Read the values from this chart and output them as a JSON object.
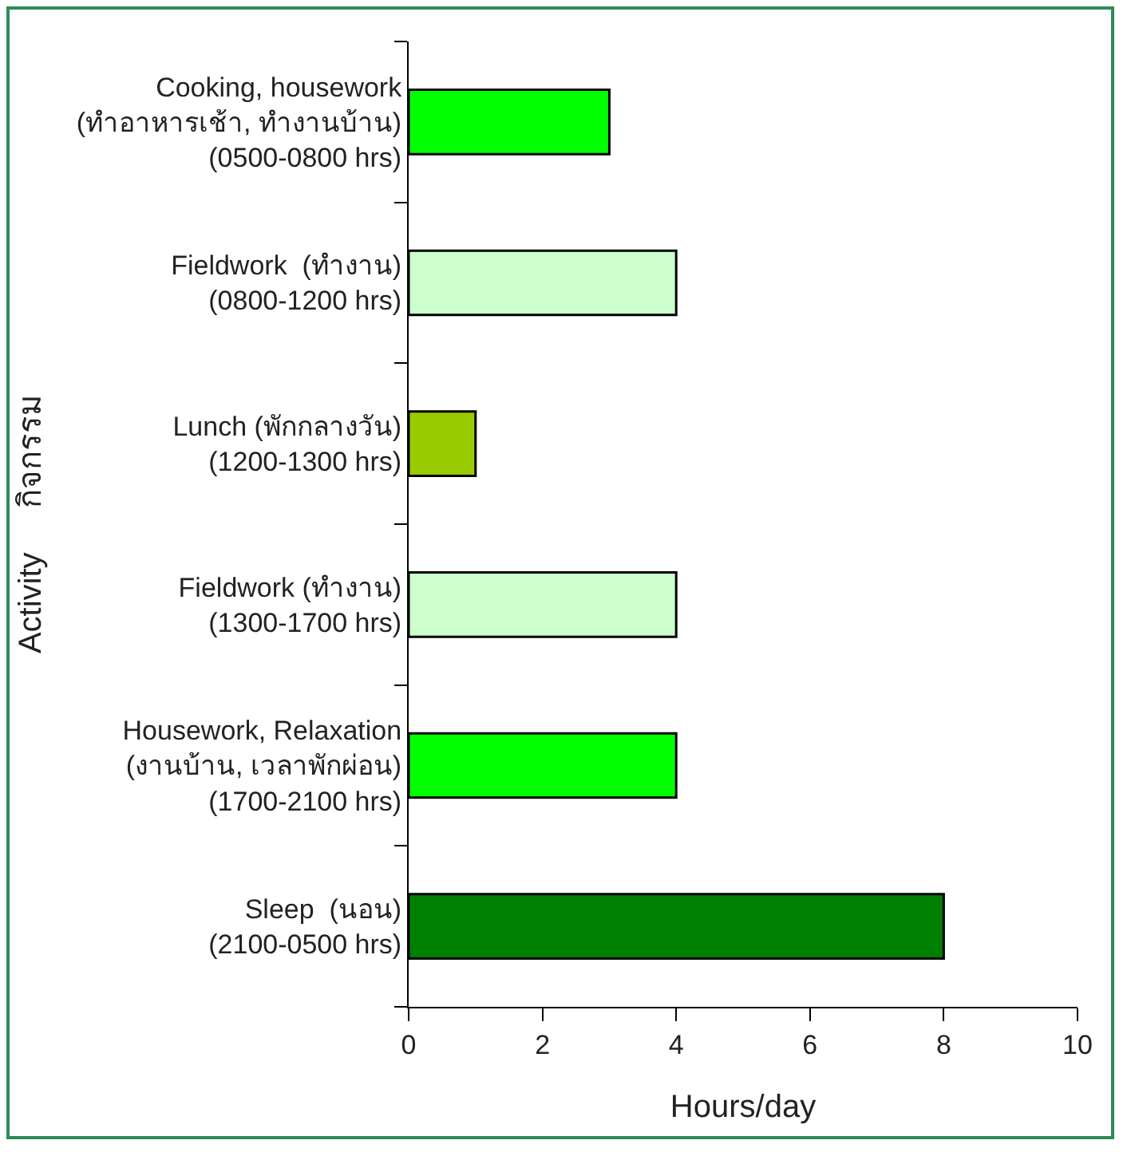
{
  "chart_data": {
    "type": "bar",
    "orientation": "horizontal",
    "xlabel": "Hours/day",
    "ylabel": "Activity     กิจกรรม",
    "categories": [
      "Cooking, housework\n(ทำอาหารเช้า, ทำงานบ้าน)\n(0500-0800 hrs)",
      "Fieldwork  (ทำงาน)\n(0800-1200 hrs)",
      "Lunch (พักกลางวัน)\n(1200-1300 hrs)",
      "Fieldwork (ทำงาน)\n(1300-1700 hrs)",
      "Housework, Relaxation\n(งานบ้าน, เวลาพักผ่อน)\n(1700-2100 hrs)",
      "Sleep  (นอน)\n(2100-0500 hrs)"
    ],
    "values": [
      3,
      4,
      1,
      4,
      4,
      8
    ],
    "colors": [
      "#00ff00",
      "#ccffcc",
      "#99cc00",
      "#ccffcc",
      "#00ff00",
      "#008000"
    ],
    "xlim": [
      0,
      10
    ],
    "xticks": [
      0,
      2,
      4,
      6,
      8,
      10
    ],
    "grid": false
  }
}
